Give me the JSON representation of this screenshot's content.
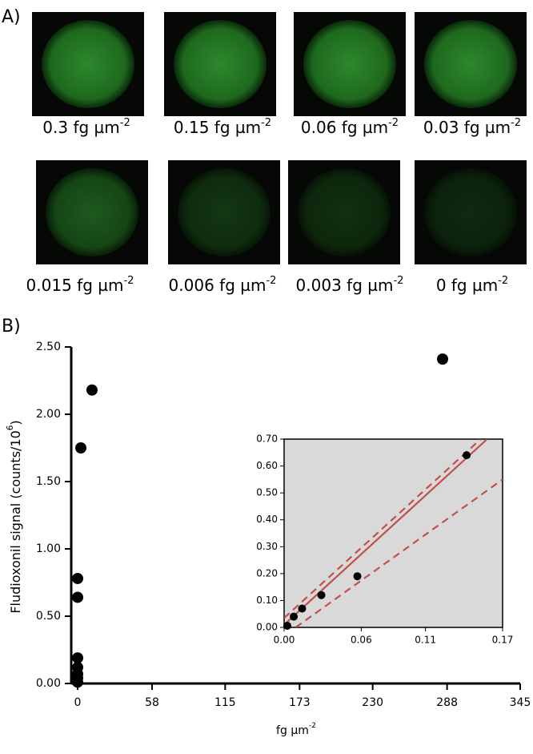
{
  "panel_a": {
    "label": "A)",
    "images": [
      {
        "text": "0.3 fg µm",
        "sup": "-2"
      },
      {
        "text": "0.15 fg µm",
        "sup": "-2"
      },
      {
        "text": "0.06 fg µm",
        "sup": "-2"
      },
      {
        "text": "0.03 fg µm",
        "sup": "-2"
      },
      {
        "text": "0.015 fg µm",
        "sup": "-2"
      },
      {
        "text": "0.006 fg µm",
        "sup": "-2"
      },
      {
        "text": "0.003 fg µm",
        "sup": "-2"
      },
      {
        "text": "0 fg µm",
        "sup": "-2"
      }
    ]
  },
  "chart_data": {
    "type": "scatter",
    "panel_label": "B)",
    "x_label": "fg µm",
    "x_label_sup": "-2",
    "y_label": "Fludioxonil signal (counts/10",
    "y_label_sup": "6",
    "y_label_end": ")",
    "xlim": [
      -5,
      345
    ],
    "xticks": [
      0,
      58,
      115,
      173,
      230,
      288,
      345
    ],
    "ylim": [
      0,
      2.5
    ],
    "yticks": [
      {
        "value": 0,
        "label": "0.00"
      },
      {
        "value": 0.5,
        "label": "0.50"
      },
      {
        "value": 1,
        "label": "1.00"
      },
      {
        "value": 1.5,
        "label": "1.50"
      },
      {
        "value": 2,
        "label": "2.00"
      },
      {
        "value": 2.5,
        "label": "2.50"
      }
    ],
    "series": [
      {
        "color": "#000000",
        "x": [
          0,
          0,
          0,
          0,
          0,
          0,
          0,
          2.5,
          11.2,
          284.5
        ],
        "values": [
          0.01,
          0.04,
          0.07,
          0.12,
          0.19,
          0.64,
          0.78,
          1.75,
          2.18,
          2.41
        ]
      }
    ],
    "inset": {
      "type": "scatter",
      "background": "#d9d9d9",
      "xlim": [
        0,
        0.17
      ],
      "xticks": [
        {
          "value": 0,
          "label": "0.00"
        },
        0.06,
        0.11,
        0.17
      ],
      "ylim": [
        0,
        0.7
      ],
      "yticks": [
        {
          "value": 0,
          "label": "0.00"
        },
        {
          "value": 0.1,
          "label": "0.10"
        },
        {
          "value": 0.2,
          "label": "0.20"
        },
        {
          "value": 0.3,
          "label": "0.30"
        },
        {
          "value": 0.4,
          "label": "0.40"
        },
        {
          "value": 0.5,
          "label": "0.50"
        },
        {
          "value": 0.6,
          "label": "0.60"
        },
        {
          "value": 0.7,
          "label": "0.70"
        }
      ],
      "series": [
        {
          "color": "#000000",
          "x": [
            0.0025,
            0.0075,
            0.014,
            0.029,
            0.057,
            0.142
          ],
          "values": [
            0.006,
            0.04,
            0.07,
            0.12,
            0.19,
            0.64
          ]
        }
      ],
      "lines": [
        {
          "style": "solid",
          "color": "#c0504d",
          "x": [
            0,
            0.158
          ],
          "values": [
            0.01,
            0.7
          ]
        },
        {
          "style": "dashed",
          "color": "#c0504d",
          "x": [
            0,
            0.153
          ],
          "values": [
            0.035,
            0.7
          ]
        },
        {
          "style": "dashed",
          "color": "#c0504d",
          "x": [
            0.009,
            0.17
          ],
          "values": [
            0,
            0.55
          ]
        }
      ]
    }
  }
}
